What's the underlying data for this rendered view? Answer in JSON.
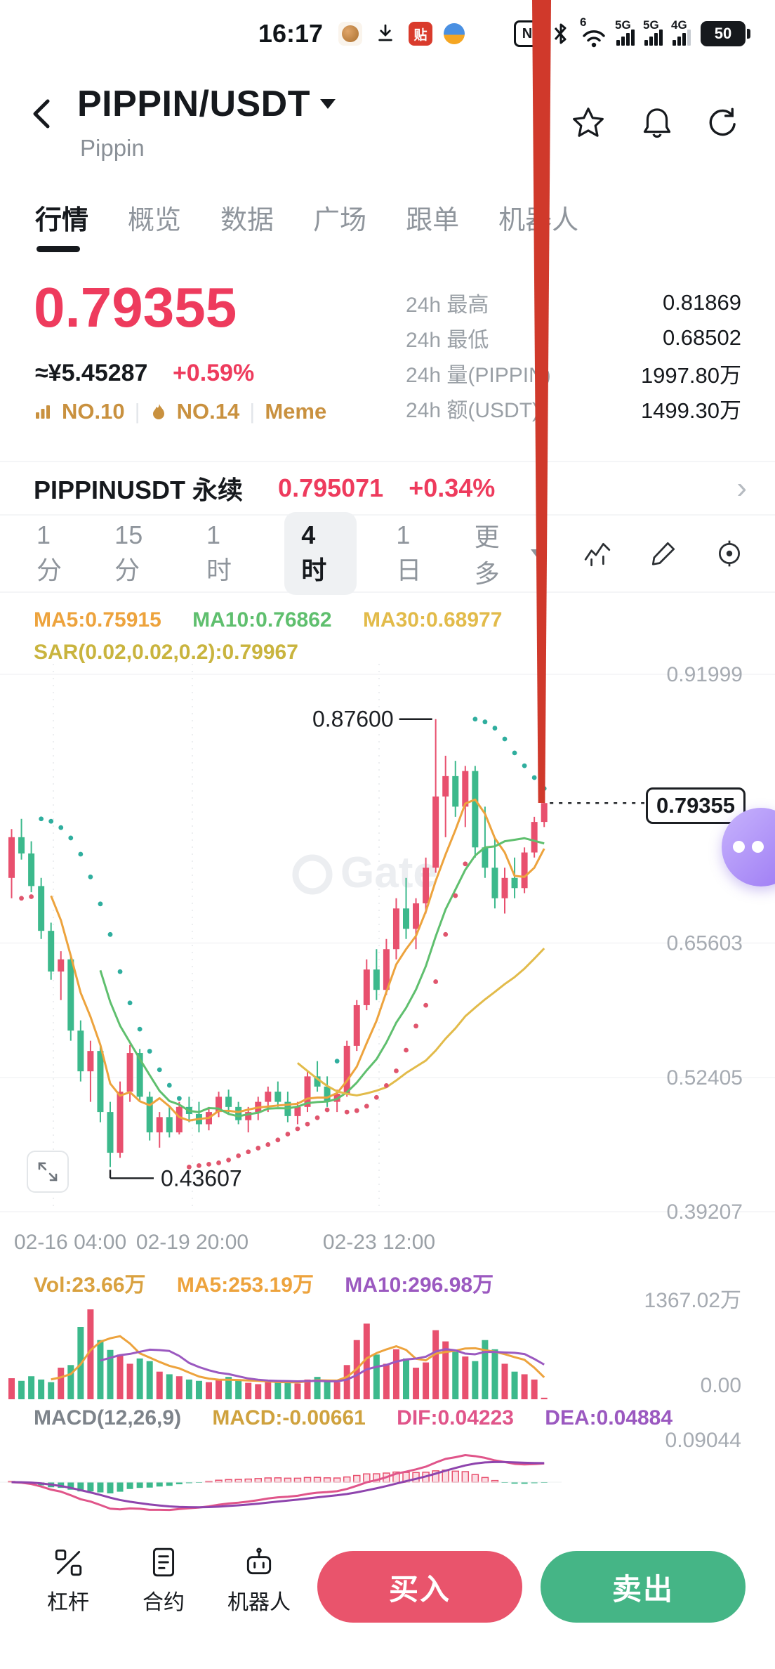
{
  "colors": {
    "up": "#e8506e",
    "down": "#3cb98c",
    "accent_red": "#ee3b5d",
    "gold": "#c9913f",
    "ma5": "#eda33d",
    "ma10": "#5fbf6e",
    "ma30": "#e2bb4a",
    "vol_ma5": "#eda33d",
    "vol_ma10": "#9b59c0",
    "dif": "#e0558a",
    "dea": "#8e44ad",
    "sar_up": "#e0556d",
    "sar_down": "#2fae9e"
  },
  "status_bar": {
    "time": "16:17",
    "battery": "50",
    "nfc": "N",
    "wifi_gen": "6",
    "net1": "5G",
    "net2": "5G",
    "net3": "4G",
    "app_badge": "贴"
  },
  "header": {
    "title": "PIPPIN/USDT",
    "subtitle": "Pippin"
  },
  "tabs": [
    "行情",
    "概览",
    "数据",
    "广场",
    "跟单",
    "机器人"
  ],
  "price": {
    "last": "0.79355",
    "cny": "≈¥5.45287",
    "change": "+0.59%",
    "rank1": "NO.10",
    "rank2": "NO.14",
    "tag": "Meme"
  },
  "stats": [
    {
      "label": "24h 最高",
      "value": "0.81869"
    },
    {
      "label": "24h 最低",
      "value": "0.68502"
    },
    {
      "label": "24h 量(PIPPIN)",
      "value": "1997.80万"
    },
    {
      "label": "24h 额(USDT)",
      "value": "1499.30万"
    }
  ],
  "perp": {
    "name": "PIPPINUSDT 永续",
    "price": "0.795071",
    "change": "+0.34%",
    "chevron": "›"
  },
  "timeframes": {
    "items": [
      "1分",
      "15分",
      "1时",
      "4时",
      "1日"
    ],
    "active": "4时",
    "more": "更多"
  },
  "indicators": {
    "ma5": "MA5:0.75915",
    "ma10": "MA10:0.76862",
    "ma30": "MA30:0.68977",
    "sar": "SAR(0.02,0.02,0.2):0.79967"
  },
  "volume_header": {
    "vol": "Vol:23.66万",
    "ma5": "MA5:253.19万",
    "ma10": "MA10:296.98万"
  },
  "macd_header": {
    "title": "MACD(12,26,9)",
    "macd": "MACD:-0.00661",
    "dif": "DIF:0.04223",
    "dea": "DEA:0.04884"
  },
  "watermark": "Gate",
  "bottom_bar": {
    "items": [
      "杠杆",
      "合约",
      "机器人"
    ],
    "buy": "买入",
    "sell": "卖出"
  },
  "chart_data": [
    {
      "type": "candlestick",
      "title": "PIPPIN/USDT 4时 K线",
      "y_ticks": [
        {
          "label": "0.91999",
          "value": 0.91999
        },
        {
          "label": "0.65603",
          "value": 0.65603
        },
        {
          "label": "0.52405",
          "value": 0.52405
        },
        {
          "label": "0.39207",
          "value": 0.39207
        }
      ],
      "x_ticks": [
        "02-16 04:00",
        "02-19 20:00",
        "02-23 12:00"
      ],
      "ylim": [
        0.36,
        0.955
      ],
      "annotations": {
        "high_label": "0.87600",
        "high_value": 0.876,
        "high_index": 43,
        "low_label": "0.43607",
        "low_value": 0.436,
        "low_index": 10,
        "last_label": "0.79355",
        "last_value": 0.79355
      },
      "ohlc": [
        [
          0.72,
          0.768,
          0.7,
          0.76
        ],
        [
          0.76,
          0.778,
          0.738,
          0.744
        ],
        [
          0.744,
          0.756,
          0.706,
          0.712
        ],
        [
          0.712,
          0.72,
          0.66,
          0.668
        ],
        [
          0.668,
          0.676,
          0.62,
          0.628
        ],
        [
          0.628,
          0.648,
          0.6,
          0.64
        ],
        [
          0.64,
          0.644,
          0.56,
          0.57
        ],
        [
          0.57,
          0.58,
          0.52,
          0.53
        ],
        [
          0.53,
          0.56,
          0.5,
          0.55
        ],
        [
          0.55,
          0.556,
          0.48,
          0.49
        ],
        [
          0.49,
          0.5,
          0.436,
          0.45
        ],
        [
          0.45,
          0.52,
          0.445,
          0.51
        ],
        [
          0.51,
          0.556,
          0.5,
          0.548
        ],
        [
          0.548,
          0.552,
          0.5,
          0.505
        ],
        [
          0.505,
          0.51,
          0.462,
          0.47
        ],
        [
          0.47,
          0.49,
          0.455,
          0.485
        ],
        [
          0.485,
          0.495,
          0.465,
          0.47
        ],
        [
          0.47,
          0.5,
          0.468,
          0.495
        ],
        [
          0.495,
          0.505,
          0.48,
          0.488
        ],
        [
          0.488,
          0.5,
          0.47,
          0.478
        ],
        [
          0.478,
          0.495,
          0.472,
          0.49
        ],
        [
          0.49,
          0.51,
          0.485,
          0.505
        ],
        [
          0.505,
          0.512,
          0.488,
          0.495
        ],
        [
          0.495,
          0.5,
          0.478,
          0.482
        ],
        [
          0.482,
          0.495,
          0.47,
          0.49
        ],
        [
          0.49,
          0.505,
          0.482,
          0.5
        ],
        [
          0.5,
          0.515,
          0.49,
          0.51
        ],
        [
          0.51,
          0.52,
          0.495,
          0.5
        ],
        [
          0.5,
          0.51,
          0.48,
          0.486
        ],
        [
          0.486,
          0.5,
          0.478,
          0.495
        ],
        [
          0.495,
          0.53,
          0.49,
          0.525
        ],
        [
          0.525,
          0.54,
          0.51,
          0.515
        ],
        [
          0.515,
          0.525,
          0.495,
          0.5
        ],
        [
          0.5,
          0.512,
          0.49,
          0.508
        ],
        [
          0.508,
          0.56,
          0.505,
          0.555
        ],
        [
          0.555,
          0.6,
          0.55,
          0.595
        ],
        [
          0.595,
          0.64,
          0.59,
          0.63
        ],
        [
          0.63,
          0.65,
          0.6,
          0.61
        ],
        [
          0.61,
          0.66,
          0.605,
          0.65
        ],
        [
          0.65,
          0.7,
          0.64,
          0.69
        ],
        [
          0.69,
          0.72,
          0.66,
          0.67
        ],
        [
          0.67,
          0.7,
          0.65,
          0.695
        ],
        [
          0.695,
          0.74,
          0.685,
          0.73
        ],
        [
          0.73,
          0.876,
          0.725,
          0.8
        ],
        [
          0.8,
          0.84,
          0.76,
          0.82
        ],
        [
          0.82,
          0.835,
          0.78,
          0.79
        ],
        [
          0.79,
          0.83,
          0.77,
          0.825
        ],
        [
          0.825,
          0.83,
          0.74,
          0.75
        ],
        [
          0.75,
          0.79,
          0.72,
          0.73
        ],
        [
          0.73,
          0.76,
          0.69,
          0.7
        ],
        [
          0.7,
          0.73,
          0.685,
          0.72
        ],
        [
          0.72,
          0.74,
          0.7,
          0.71
        ],
        [
          0.71,
          0.75,
          0.705,
          0.745
        ],
        [
          0.745,
          0.78,
          0.74,
          0.775
        ],
        [
          0.775,
          0.8,
          0.77,
          0.79355
        ]
      ]
    },
    {
      "type": "bar",
      "name": "volume",
      "ylim": [
        0,
        1367.02
      ],
      "y_ticks": [
        "1367.02万",
        "0.00"
      ],
      "values": [
        320,
        280,
        350,
        300,
        260,
        480,
        520,
        1100,
        1367,
        900,
        750,
        680,
        540,
        620,
        580,
        420,
        380,
        350,
        300,
        280,
        260,
        300,
        340,
        280,
        250,
        230,
        260,
        290,
        270,
        240,
        300,
        340,
        280,
        260,
        520,
        900,
        1150,
        680,
        540,
        760,
        620,
        480,
        560,
        1050,
        880,
        720,
        650,
        580,
        900,
        760,
        540,
        420,
        380,
        300,
        23.66
      ]
    },
    {
      "type": "macd",
      "params": [
        12,
        26,
        9
      ],
      "y_tick": "0.09044",
      "ylim": [
        -0.0944,
        0.0944
      ],
      "values": {
        "macd": -0.00661,
        "dif": 0.04223,
        "dea": 0.04884
      }
    }
  ]
}
